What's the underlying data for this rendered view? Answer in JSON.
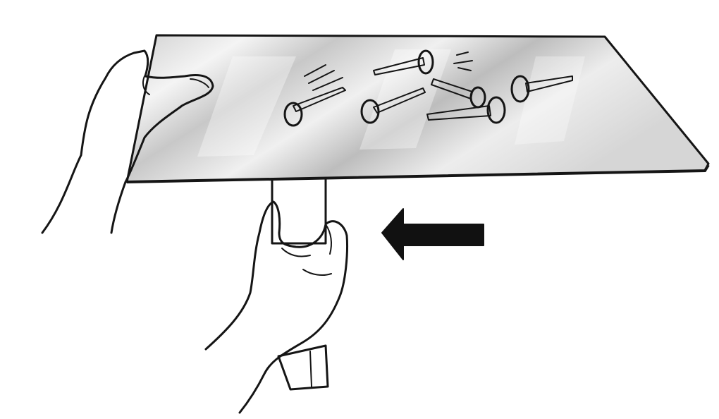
{
  "illustration": {
    "objects": [
      "metal-sheet",
      "nails",
      "magnet-bar",
      "hands",
      "arrow"
    ],
    "colors": {
      "background": "#ffffff",
      "sheet": "#d9d9d9",
      "sheet_highlight": "#f2f2f2",
      "magnet": "#3a3a3a",
      "outline": "#151515",
      "arrow": "#111111",
      "skin": "#ffffff"
    }
  }
}
